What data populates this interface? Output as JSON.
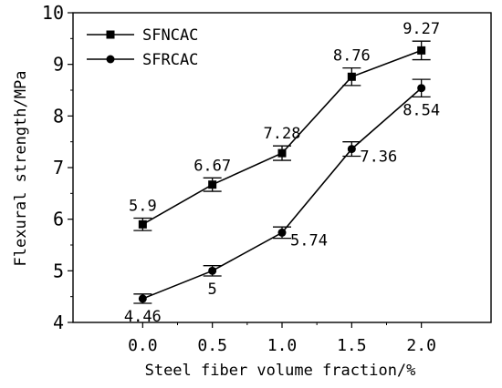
{
  "chart_data": {
    "type": "line",
    "x": [
      0.0,
      0.5,
      1.0,
      1.5,
      2.0
    ],
    "x_tick_labels": [
      "0.0",
      "0.5",
      "1.0",
      "1.5",
      "2.0"
    ],
    "y_tick_labels": [
      "4",
      "5",
      "6",
      "7",
      "8",
      "9",
      "10"
    ],
    "xlim": [
      -0.5,
      2.5
    ],
    "ylim": [
      4,
      10
    ],
    "xlabel": "Steel fiber volume fraction/%",
    "ylabel": "Flexural strength/MPa",
    "legend_position": "top-left",
    "grid": false,
    "series": [
      {
        "name": "SFNCAC",
        "marker": "square",
        "values": [
          5.9,
          6.67,
          7.28,
          8.76,
          9.27
        ],
        "data_labels": [
          "5.9",
          "6.67",
          "7.28",
          "8.76",
          "9.27"
        ],
        "error": [
          0.12,
          0.13,
          0.14,
          0.17,
          0.18
        ],
        "label_side": [
          "above",
          "above",
          "above",
          "above",
          "above"
        ]
      },
      {
        "name": "SFRCAC",
        "marker": "circle",
        "values": [
          4.46,
          5.0,
          5.74,
          7.36,
          8.54
        ],
        "data_labels": [
          "4.46",
          "5",
          "5.74",
          "7.36",
          "8.54"
        ],
        "error": [
          0.09,
          0.1,
          0.11,
          0.14,
          0.17
        ],
        "label_side": [
          "below",
          "below",
          "right",
          "right",
          "below"
        ]
      }
    ]
  }
}
